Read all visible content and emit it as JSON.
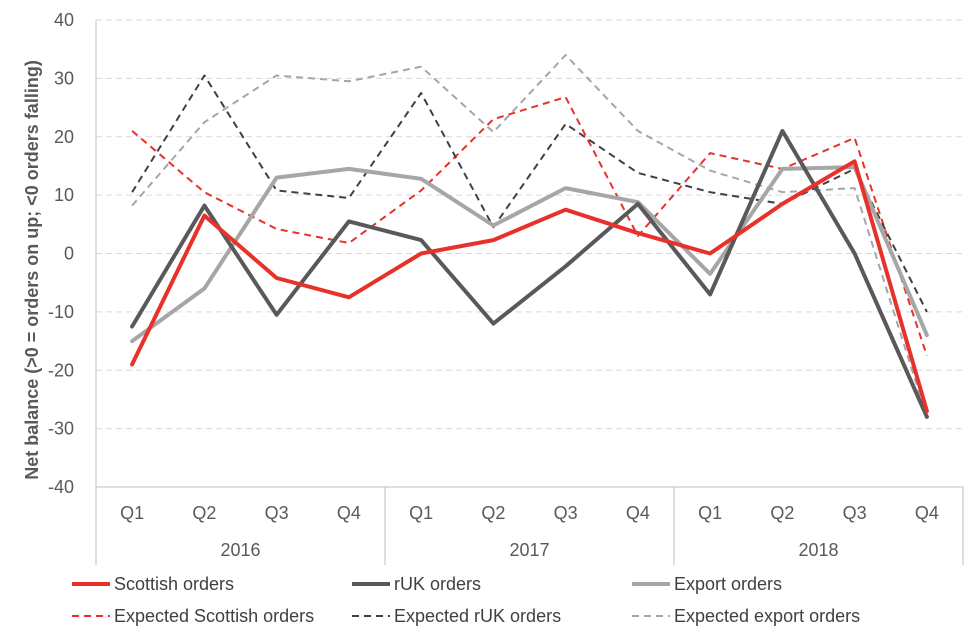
{
  "chart_data": {
    "type": "line",
    "ylabel": "Net balance (>0 = orders on up; <0 orders falling)",
    "ylim": [
      -40,
      40
    ],
    "yticks": [
      -40,
      -30,
      -20,
      -10,
      0,
      10,
      20,
      30,
      40
    ],
    "quarters": [
      "Q1",
      "Q2",
      "Q3",
      "Q4",
      "Q1",
      "Q2",
      "Q3",
      "Q4",
      "Q1",
      "Q2",
      "Q3",
      "Q4"
    ],
    "years": [
      "2016",
      "2017",
      "2018"
    ],
    "grid": true,
    "legend_position": "bottom",
    "series": [
      {
        "name": "Scottish orders",
        "color": "#e8312a",
        "style": "solid",
        "width": 4,
        "values": [
          -19,
          6.5,
          -4.2,
          -7.5,
          0,
          2.3,
          7.5,
          3.5,
          0,
          8.5,
          15.8,
          -27
        ]
      },
      {
        "name": "rUK orders",
        "color": "#595959",
        "style": "solid",
        "width": 4,
        "values": [
          -12.5,
          8.2,
          -10.5,
          5.5,
          2.3,
          -12,
          -2.2,
          8.5,
          -7,
          21,
          0,
          -28
        ]
      },
      {
        "name": "Export orders",
        "color": "#a6a6a6",
        "style": "solid",
        "width": 4,
        "values": [
          -15,
          -6,
          13,
          14.5,
          12.8,
          4.8,
          11.2,
          8.8,
          -3.5,
          14.5,
          14.8,
          -14
        ]
      },
      {
        "name": "Expected Scottish orders",
        "color": "#e8312a",
        "style": "dashed",
        "width": 2,
        "values": [
          21,
          10.5,
          4.2,
          1.8,
          10.8,
          23,
          26.8,
          3,
          17.2,
          14.5,
          19.8,
          -17.5
        ]
      },
      {
        "name": "Expected rUK orders",
        "color": "#404040",
        "style": "dashed",
        "width": 2,
        "values": [
          10.5,
          30.5,
          10.8,
          9.5,
          27.5,
          4.5,
          22.2,
          13.8,
          10.5,
          8.5,
          14.5,
          -10
        ]
      },
      {
        "name": "Expected export orders",
        "color": "#a6a6a6",
        "style": "dashed",
        "width": 2,
        "values": [
          8.2,
          22.5,
          30.5,
          29.5,
          32,
          20.8,
          34,
          21,
          14.2,
          10.5,
          11.2,
          -28
        ]
      }
    ]
  }
}
